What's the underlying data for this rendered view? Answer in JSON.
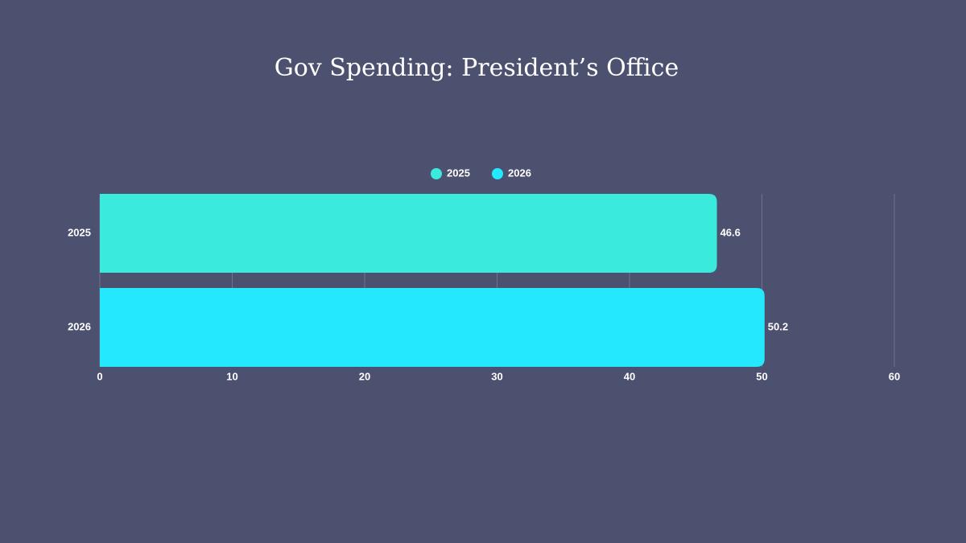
{
  "chart_data": {
    "type": "hbar",
    "title": "Gov Spending: President’s Office",
    "categories": [
      "2025",
      "2026"
    ],
    "series": [
      {
        "name": "2025",
        "color": "#3aeadc",
        "values": [
          46.6,
          null
        ]
      },
      {
        "name": "2026",
        "color": "#24e8fe",
        "values": [
          null,
          50.2
        ]
      }
    ],
    "xlim": [
      0,
      60
    ],
    "xticks": [
      0,
      10,
      20,
      30,
      40,
      50,
      60
    ],
    "grid": true,
    "legend": "top"
  }
}
